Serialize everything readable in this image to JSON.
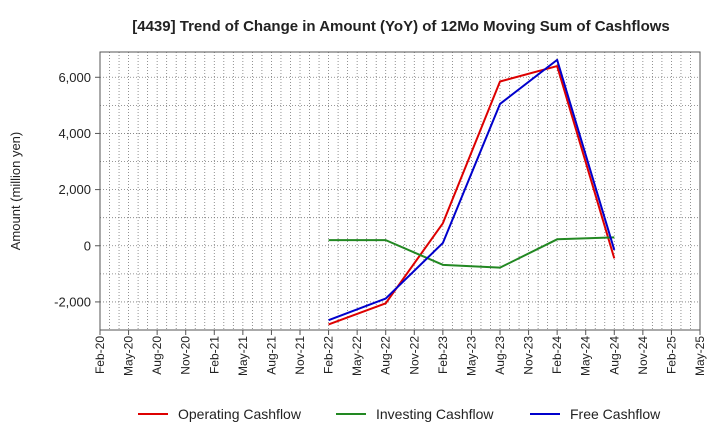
{
  "chart_data": {
    "type": "line",
    "title": "[4439]  Trend of Change in Amount (YoY) of 12Mo Moving Sum of Cashflows",
    "xlabel": "",
    "ylabel": "Amount (million yen)",
    "ylim": [
      -3000,
      6900
    ],
    "yticks": [
      -2000,
      0,
      2000,
      4000,
      6000
    ],
    "ytick_labels": [
      "-2,000",
      "0",
      "2,000",
      "4,000",
      "6,000"
    ],
    "categories": [
      "Feb-20",
      "May-20",
      "Aug-20",
      "Nov-20",
      "Feb-21",
      "May-21",
      "Aug-21",
      "Nov-21",
      "Feb-22",
      "May-22",
      "Aug-22",
      "Nov-22",
      "Feb-23",
      "May-23",
      "Aug-23",
      "Nov-23",
      "Feb-24",
      "May-24",
      "Aug-24",
      "Nov-24",
      "Feb-25",
      "May-25"
    ],
    "grid": true,
    "legend_position": "bottom",
    "series": [
      {
        "name": "Operating Cashflow",
        "color": "#dd0000",
        "points": [
          {
            "x": "Feb-22",
            "y": -2800
          },
          {
            "x": "Aug-22",
            "y": -2050
          },
          {
            "x": "Feb-23",
            "y": 800
          },
          {
            "x": "Aug-23",
            "y": 5850
          },
          {
            "x": "Feb-24",
            "y": 6400
          },
          {
            "x": "Aug-24",
            "y": -450
          }
        ]
      },
      {
        "name": "Investing Cashflow",
        "color": "#228822",
        "points": [
          {
            "x": "Feb-22",
            "y": 200
          },
          {
            "x": "Aug-22",
            "y": 200
          },
          {
            "x": "Feb-23",
            "y": -680
          },
          {
            "x": "Aug-23",
            "y": -780
          },
          {
            "x": "Feb-24",
            "y": 230
          },
          {
            "x": "Aug-24",
            "y": 300
          }
        ]
      },
      {
        "name": "Free Cashflow",
        "color": "#0000cc",
        "points": [
          {
            "x": "Feb-22",
            "y": -2650
          },
          {
            "x": "Aug-22",
            "y": -1880
          },
          {
            "x": "Feb-23",
            "y": 100
          },
          {
            "x": "Aug-23",
            "y": 5050
          },
          {
            "x": "Feb-24",
            "y": 6620
          },
          {
            "x": "Aug-24",
            "y": -150
          }
        ]
      }
    ]
  }
}
